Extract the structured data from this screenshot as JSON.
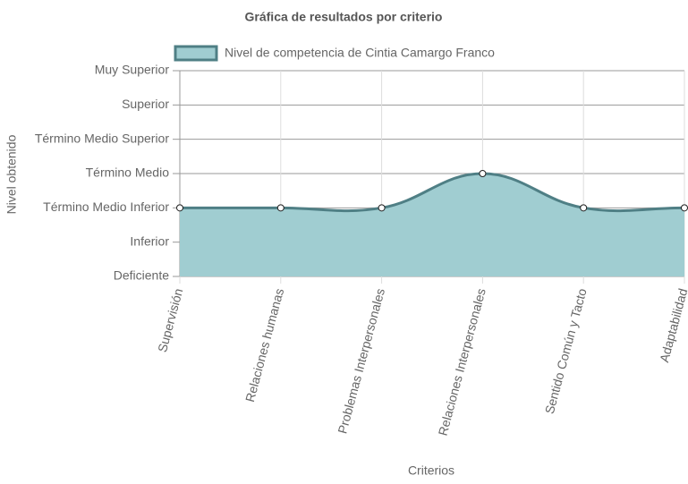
{
  "chart_data": {
    "type": "area",
    "title": "Gráfica de resultados por criterio",
    "x_label": "Criterios",
    "y_label": "Nivel obtenido",
    "categories": [
      "Supervisión",
      "Relaciones humanas",
      "Problemas Interpersonales",
      "Relaciones Interpersonales",
      "Sentido Común y Tacto",
      "Adaptabilidad"
    ],
    "series": [
      {
        "name": "Nivel de competencia de Cintia Camargo Franco",
        "color": "#4f7f85",
        "fill": "#a0cdd1",
        "values": [
          2,
          2,
          2,
          3,
          2,
          2
        ]
      }
    ],
    "ylim": [
      0,
      6
    ],
    "yticks": [
      {
        "value": 0,
        "label": "Deficiente"
      },
      {
        "value": 1,
        "label": "Inferior"
      },
      {
        "value": 2,
        "label": "Término Medio Inferior"
      },
      {
        "value": 3,
        "label": "Término Medio"
      },
      {
        "value": 4,
        "label": "Término Medio Superior"
      },
      {
        "value": 5,
        "label": "Superior"
      },
      {
        "value": 6,
        "label": "Muy Superior"
      }
    ],
    "grid": true,
    "legend": "top"
  }
}
